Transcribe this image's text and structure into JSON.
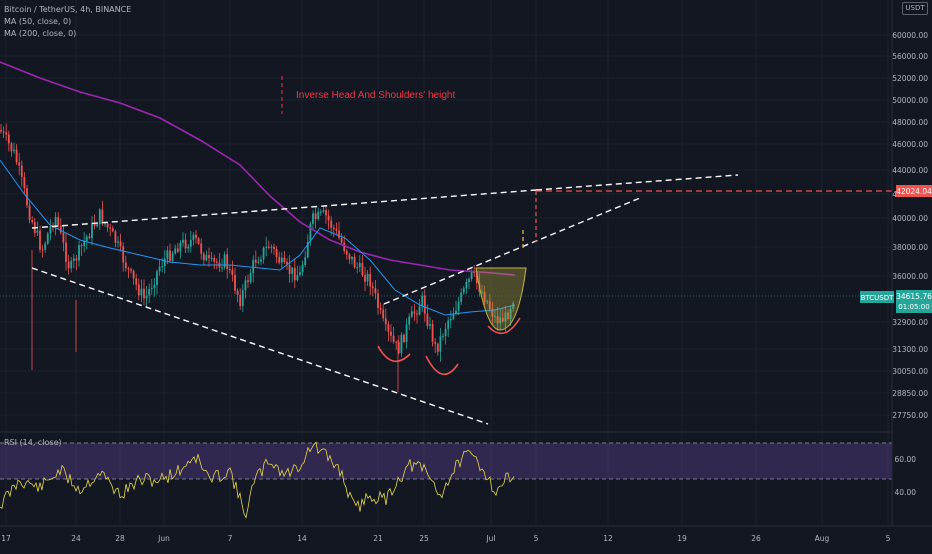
{
  "legend": {
    "symbol": "Bitcoin / TetherUS, 4h, BINANCE",
    "ma50": "MA (50, close, 0)",
    "ma200": "MA (200, close, 0)"
  },
  "currency_label": "USDT",
  "annotation": "Inverse Head And Shoulders' height",
  "price_axis": {
    "ticks": [
      "60000.00",
      "56000.00",
      "52000.00",
      "50000.00",
      "48000.00",
      "46000.00",
      "44000.00",
      "42000.00",
      "40000.00",
      "38000.00",
      "36000.00",
      "32900.00",
      "31300.00",
      "30050.00",
      "28850.00",
      "27750.00"
    ],
    "symbol_tag": "BTCUSDT",
    "last_price": "34615.76",
    "countdown": "01:05:00",
    "target_price": "42024.04"
  },
  "rsi": {
    "label": "RSI (14, close)",
    "ticks": [
      "60.00",
      "40.00"
    ]
  },
  "time_axis": {
    "ticks": [
      "17",
      "24",
      "28",
      "Jun",
      "7",
      "14",
      "21",
      "25",
      "Jul",
      "5",
      "12",
      "19",
      "26",
      "Aug",
      "5"
    ]
  },
  "colors": {
    "background": "#131722",
    "up": "#26a69a",
    "down": "#ef5350",
    "ma50": "#2196f3",
    "ma200": "#9c27b0",
    "rsi": "#e6d84a",
    "rsi_band": "#7e57c2",
    "annotation": "#f23645"
  },
  "chart_data": {
    "type": "candlestick",
    "timeframe": "4h",
    "series": [
      {
        "name": "MA (50, close, 0)"
      },
      {
        "name": "MA (200, close, 0)"
      },
      {
        "name": "RSI (14, close)"
      }
    ],
    "last_price": 34615.76,
    "target_price": 42024.04,
    "rsi_levels": [
      70,
      30
    ]
  }
}
